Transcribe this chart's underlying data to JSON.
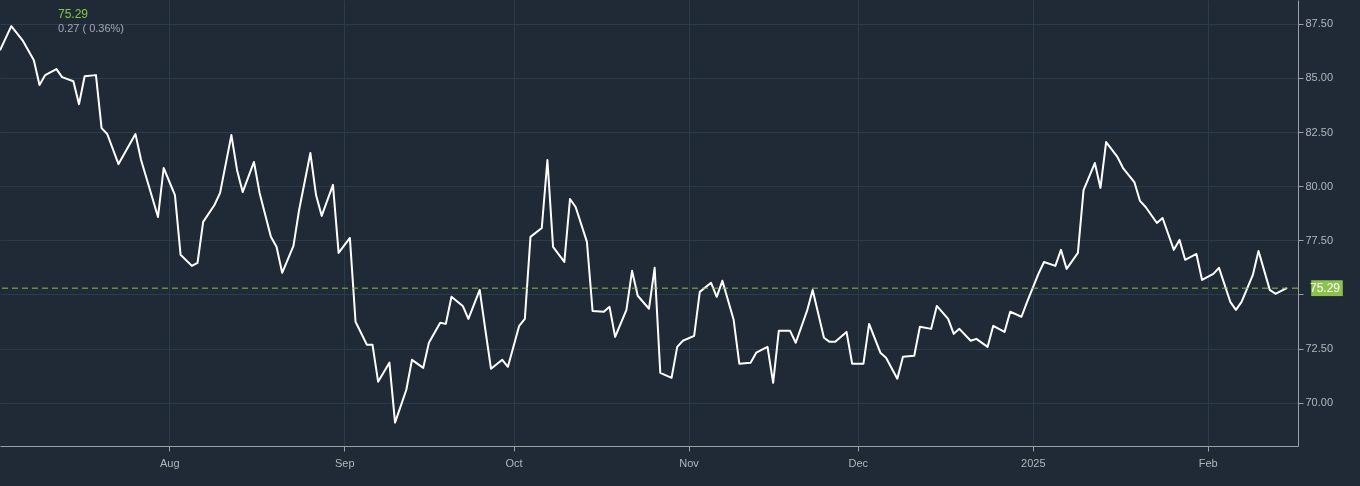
{
  "chart_data": {
    "type": "line",
    "x": [
      "2024-07-02",
      "2024-07-04",
      "2024-07-06",
      "2024-07-08",
      "2024-07-09",
      "2024-07-10",
      "2024-07-12",
      "2024-07-13",
      "2024-07-15",
      "2024-07-16",
      "2024-07-17",
      "2024-07-19",
      "2024-07-20",
      "2024-07-21",
      "2024-07-23",
      "2024-07-26",
      "2024-07-27",
      "2024-07-30",
      "2024-07-31",
      "2024-08-02",
      "2024-08-03",
      "2024-08-05",
      "2024-08-06",
      "2024-08-07",
      "2024-08-09",
      "2024-08-10",
      "2024-08-12",
      "2024-08-13",
      "2024-08-14",
      "2024-08-16",
      "2024-08-17",
      "2024-08-19",
      "2024-08-20",
      "2024-08-21",
      "2024-08-23",
      "2024-08-24",
      "2024-08-26",
      "2024-08-27",
      "2024-08-28",
      "2024-08-30",
      "2024-08-31",
      "2024-09-02",
      "2024-09-03",
      "2024-09-05",
      "2024-09-06",
      "2024-09-07",
      "2024-09-09",
      "2024-09-10",
      "2024-09-12",
      "2024-09-13",
      "2024-09-15",
      "2024-09-16",
      "2024-09-18",
      "2024-09-19",
      "2024-09-20",
      "2024-09-22",
      "2024-09-23",
      "2024-09-25",
      "2024-09-26",
      "2024-09-27",
      "2024-09-29",
      "2024-09-30",
      "2024-10-02",
      "2024-10-03",
      "2024-10-04",
      "2024-10-06",
      "2024-10-07",
      "2024-10-08",
      "2024-10-10",
      "2024-10-11",
      "2024-10-12",
      "2024-10-14",
      "2024-10-15",
      "2024-10-17",
      "2024-10-18",
      "2024-10-19",
      "2024-10-21",
      "2024-10-22",
      "2024-10-23",
      "2024-10-25",
      "2024-10-26",
      "2024-10-27",
      "2024-10-29",
      "2024-10-30",
      "2024-10-31",
      "2024-11-02",
      "2024-11-03",
      "2024-11-05",
      "2024-11-06",
      "2024-11-07",
      "2024-11-09",
      "2024-11-10",
      "2024-11-12",
      "2024-11-13",
      "2024-11-15",
      "2024-11-16",
      "2024-11-17",
      "2024-11-19",
      "2024-11-20",
      "2024-11-22",
      "2024-11-23",
      "2024-11-25",
      "2024-11-26",
      "2024-11-27",
      "2024-11-29",
      "2024-11-30",
      "2024-12-02",
      "2024-12-03",
      "2024-12-05",
      "2024-12-06",
      "2024-12-08",
      "2024-12-09",
      "2024-12-11",
      "2024-12-12",
      "2024-12-14",
      "2024-12-15",
      "2024-12-17",
      "2024-12-18",
      "2024-12-19",
      "2024-12-21",
      "2024-12-22",
      "2024-12-24",
      "2024-12-25",
      "2024-12-27",
      "2024-12-28",
      "2024-12-30",
      "2024-12-31",
      "2025-01-02",
      "2025-01-03",
      "2025-01-05",
      "2025-01-06",
      "2025-01-07",
      "2025-01-09",
      "2025-01-10",
      "2025-01-12",
      "2025-01-13",
      "2025-01-14",
      "2025-01-16",
      "2025-01-17",
      "2025-01-19",
      "2025-01-20",
      "2025-01-21",
      "2025-01-23",
      "2025-01-24",
      "2025-01-26",
      "2025-01-27",
      "2025-01-28",
      "2025-01-30",
      "2025-01-31",
      "2025-02-02",
      "2025-02-03",
      "2025-02-05",
      "2025-02-06",
      "2025-02-07",
      "2025-02-09",
      "2025-02-10",
      "2025-02-12",
      "2025-02-13",
      "2025-02-15"
    ],
    "series": [
      {
        "color": "#ffffff",
        "values": [
          86.28,
          87.39,
          86.74,
          85.82,
          84.67,
          85.13,
          85.41,
          85.04,
          84.85,
          83.79,
          85.08,
          85.13,
          82.68,
          82.41,
          81.02,
          82.41,
          81.21,
          78.58,
          80.84,
          79.59,
          76.83,
          76.32,
          76.46,
          78.35,
          79.13,
          79.69,
          82.36,
          80.75,
          79.73,
          81.12,
          79.69,
          77.66,
          77.2,
          76.0,
          77.24,
          78.9,
          81.53,
          79.59,
          78.63,
          80.06,
          76.92,
          77.61,
          73.74,
          72.68,
          72.68,
          70.97,
          71.85,
          69.08,
          70.6,
          71.98,
          71.61,
          72.77,
          73.69,
          73.64,
          74.89,
          74.47,
          73.87,
          75.21,
          73.37,
          71.57,
          71.98,
          71.66,
          73.55,
          73.87,
          77.66,
          78.07,
          81.21,
          77.2,
          76.5,
          79.41,
          79.04,
          77.43,
          74.24,
          74.2,
          74.43,
          73.04,
          74.29,
          76.09,
          74.94,
          74.34,
          76.23,
          71.38,
          71.15,
          72.58,
          72.86,
          73.09,
          75.12,
          75.54,
          74.89,
          75.63,
          73.83,
          71.8,
          71.85,
          72.31,
          72.58,
          70.92,
          73.32,
          73.32,
          72.77,
          74.24,
          75.21,
          73.0,
          72.81,
          72.81,
          73.27,
          71.8,
          71.8,
          73.64,
          72.31,
          72.08,
          71.11,
          72.12,
          72.17,
          73.51,
          73.41,
          74.47,
          73.87,
          73.18,
          73.41,
          72.86,
          72.95,
          72.58,
          73.55,
          73.27,
          74.2,
          73.97,
          74.66,
          75.95,
          76.5,
          76.32,
          77.06,
          76.18,
          76.92,
          79.82,
          81.07,
          79.92,
          82.04,
          81.35,
          80.84,
          80.19,
          79.32,
          79.04,
          78.3,
          78.53,
          77.06,
          77.52,
          76.6,
          76.87,
          75.67,
          75.95,
          76.23,
          74.66,
          74.29,
          74.66,
          75.9,
          77.01,
          75.21,
          75.03,
          75.29
        ]
      }
    ],
    "xlim": [
      "2024-07-02",
      "2025-02-17"
    ],
    "xticks": [
      {
        "value": "2024-08-01",
        "label": "Aug"
      },
      {
        "value": "2024-09-01",
        "label": "Sep"
      },
      {
        "value": "2024-10-01",
        "label": "Oct"
      },
      {
        "value": "2024-11-01",
        "label": "Nov"
      },
      {
        "value": "2024-12-01",
        "label": "Dec"
      },
      {
        "value": "2025-01-01",
        "label": "2025"
      },
      {
        "value": "2025-02-01",
        "label": "Feb"
      }
    ],
    "ylim": [
      68.0,
      88.6
    ],
    "yticks": [
      {
        "value": 70,
        "label": "70.00"
      },
      {
        "value": 72.5,
        "label": "72.50"
      },
      {
        "value": 75,
        "label": null
      },
      {
        "value": 77.5,
        "label": "77.50"
      },
      {
        "value": 80,
        "label": "80.00"
      },
      {
        "value": 82.5,
        "label": "82.50"
      },
      {
        "value": 85,
        "label": "85.00"
      },
      {
        "value": 87.5,
        "label": "87.50"
      }
    ],
    "ref_lines": [
      {
        "axis": "y",
        "value": 75.29,
        "label": "75.29",
        "color": "#8bc34a",
        "line_style": "dashed"
      }
    ],
    "annotations": [
      "75.29",
      "0.27 ( 0.36%)"
    ],
    "grid": true,
    "marker": "none",
    "line_style": "solid"
  }
}
